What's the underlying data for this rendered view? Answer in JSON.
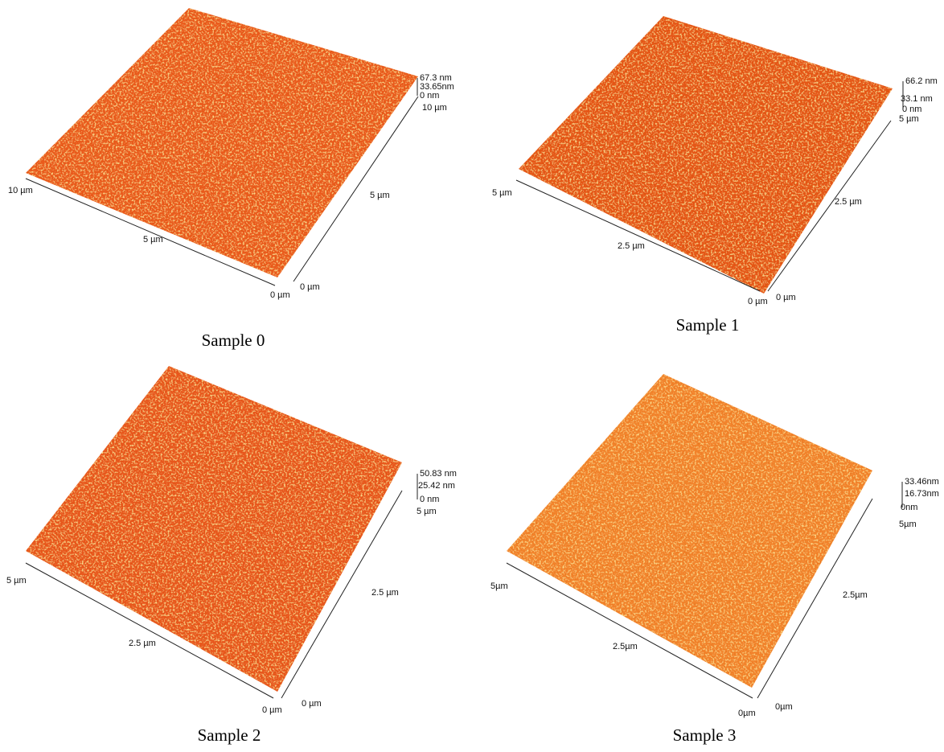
{
  "panels": [
    {
      "caption": "Sample 0",
      "z_scale": [
        "67.3 nm",
        "33.65nm",
        "0 nm",
        "10 µm"
      ],
      "right_axis": [
        "5 µm",
        "0 µm"
      ],
      "left_axis": [
        "10 µm",
        "5 µm",
        "0 µm"
      ]
    },
    {
      "caption": "Sample 1",
      "z_scale": [
        "66.2 nm",
        "33.1 nm",
        "0 nm",
        "5 µm"
      ],
      "right_axis": [
        "2.5 µm",
        "0 µm"
      ],
      "left_axis": [
        "5 µm",
        "2.5 µm",
        "0 µm"
      ]
    },
    {
      "caption": "Sample 2",
      "z_scale": [
        "50.83 nm",
        "25.42 nm",
        "0 nm",
        "5 µm"
      ],
      "right_axis": [
        "2.5 µm",
        "0 µm"
      ],
      "left_axis": [
        "5 µm",
        "2.5 µm",
        "0 µm"
      ]
    },
    {
      "caption": "Sample 3",
      "z_scale": [
        "33.46nm",
        "16.73nm",
        "0nm",
        "5µm"
      ],
      "right_axis": [
        "2.5µm",
        "0µm"
      ],
      "left_axis": [
        "5µm",
        "2.5µm",
        "0µm"
      ]
    }
  ]
}
